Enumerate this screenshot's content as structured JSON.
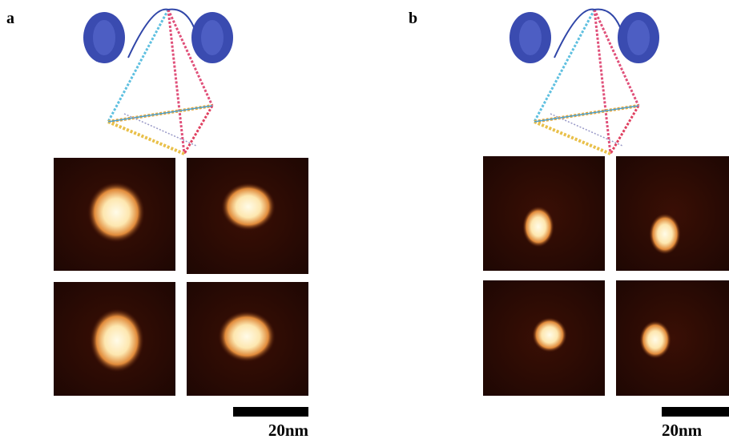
{
  "panels": [
    {
      "label": "a",
      "scale_bar": "20nm"
    },
    {
      "label": "b",
      "scale_bar": "20nm"
    }
  ]
}
